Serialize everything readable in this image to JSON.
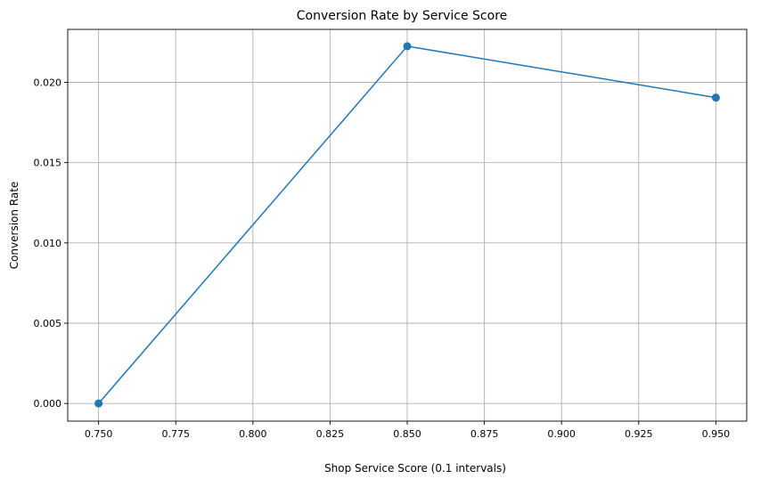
{
  "chart_data": {
    "type": "line",
    "title": "Conversion Rate by Service Score",
    "xlabel": "Shop Service Score (0.1 intervals)",
    "ylabel": "Conversion Rate",
    "x": [
      0.75,
      0.85,
      0.95
    ],
    "series": [
      {
        "values": [
          0.0,
          0.02225,
          0.01905
        ],
        "color": "#1f77b4",
        "marker": "circle"
      }
    ],
    "xlim": [
      0.74,
      0.96
    ],
    "ylim": [
      -0.0011,
      0.0233
    ],
    "xticks": [
      0.75,
      0.775,
      0.8,
      0.825,
      0.85,
      0.875,
      0.9,
      0.925,
      0.95
    ],
    "xtick_labels": [
      "0.750",
      "0.775",
      "0.800",
      "0.825",
      "0.850",
      "0.875",
      "0.900",
      "0.925",
      "0.950"
    ],
    "yticks": [
      0.0,
      0.005,
      0.01,
      0.015,
      0.02
    ],
    "ytick_labels": [
      "0.000",
      "0.005",
      "0.010",
      "0.015",
      "0.020"
    ],
    "grid": true
  }
}
